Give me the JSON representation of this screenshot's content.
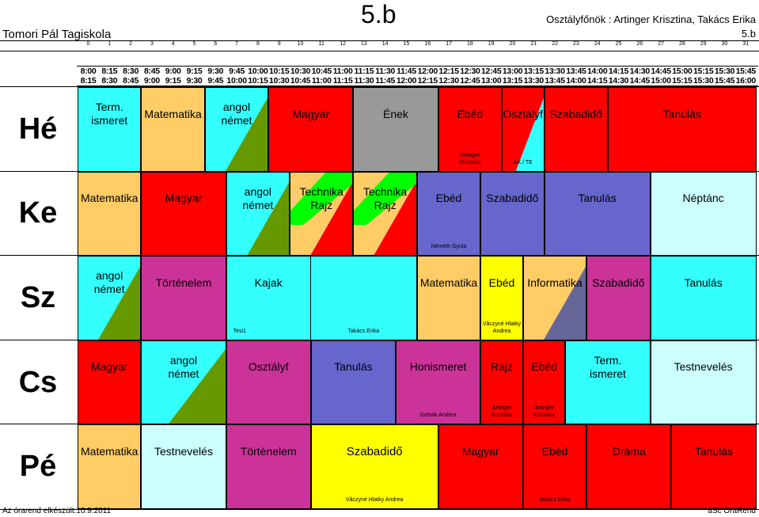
{
  "header": {
    "school": "Tomori Pál Tagiskola",
    "class_name": "5.b",
    "teachers": "Osztályfőnök : Artinger Krisztina, Takács Erika",
    "class_name_small": "5.b"
  },
  "periods": [
    "0",
    "1",
    "2",
    "3",
    "4",
    "5",
    "6",
    "7",
    "8",
    "9",
    "10",
    "11",
    "12",
    "13",
    "14",
    "15",
    "16",
    "17",
    "18",
    "19",
    "20",
    "21",
    "22",
    "23",
    "24",
    "25",
    "26",
    "27",
    "28",
    "29",
    "30",
    "31"
  ],
  "start_times": [
    "8:00",
    "8:15",
    "8:30",
    "8:45",
    "9:00",
    "9:15",
    "9:30",
    "9:45",
    "10:00",
    "10:15",
    "10:30",
    "10:45",
    "11:00",
    "11:15",
    "11:30",
    "11:45",
    "12:00",
    "12:15",
    "12:30",
    "12:45",
    "13:00",
    "13:15",
    "13:30",
    "13:45",
    "14:00",
    "14:15",
    "14:30",
    "14:45",
    "15:00",
    "15:15",
    "15:30",
    "15:45"
  ],
  "end_times": [
    "8:15",
    "8:30",
    "8:45",
    "9:00",
    "9:15",
    "9:30",
    "9:45",
    "10:00",
    "10:15",
    "10:30",
    "10:45",
    "11:00",
    "11:15",
    "11:30",
    "11:45",
    "12:00",
    "12:15",
    "12:30",
    "12:45",
    "13:00",
    "13:15",
    "13:30",
    "13:45",
    "14:00",
    "14:15",
    "14:30",
    "14:45",
    "15:00",
    "15:15",
    "15:30",
    "15:45",
    "16:00"
  ],
  "colors": {
    "red": "#ff0000",
    "cyan": "#33ffff",
    "peach": "#ffcc66",
    "olive": "#669900",
    "gray": "#999999",
    "purple": "#6666cc",
    "lightcyan": "#ccffff",
    "magenta": "#cc3399",
    "green": "#00ff00",
    "yellow": "#ffff00",
    "slate": "#666699"
  },
  "days": [
    {
      "label": "Hé",
      "lessons": [
        {
          "start": 0,
          "span": 3,
          "subjects": [
            "Term.\nismeret"
          ],
          "teacher": "",
          "bg": "cyan"
        },
        {
          "start": 3,
          "span": 3,
          "subjects": [
            "Matematika"
          ],
          "teacher": "",
          "bg": "peach"
        },
        {
          "start": 6,
          "span": 3,
          "subjects": [
            "angol",
            "német"
          ],
          "teacher": "",
          "bg": "cyan",
          "split": "olive"
        },
        {
          "start": 9,
          "span": 4,
          "subjects": [
            "Magyar"
          ],
          "teacher": "",
          "bg": "red"
        },
        {
          "start": 13,
          "span": 4,
          "subjects": [
            "Ének"
          ],
          "teacher": "",
          "bg": "gray"
        },
        {
          "start": 17,
          "span": 3,
          "subjects": [
            "Ebéd"
          ],
          "teacher": "Artinger\nKrisztina",
          "bg": "red"
        },
        {
          "start": 20,
          "span": 2,
          "subjects": [
            "Osztályf"
          ],
          "teacher": "AK / TE",
          "bg": "red",
          "split": "cyan"
        },
        {
          "start": 22,
          "span": 3,
          "subjects": [
            "Szabadidő"
          ],
          "teacher": "",
          "bg": "red"
        },
        {
          "start": 25,
          "span": 7,
          "subjects": [
            "Tanulás"
          ],
          "teacher": "",
          "bg": "red"
        }
      ]
    },
    {
      "label": "Ke",
      "lessons": [
        {
          "start": 0,
          "span": 3,
          "subjects": [
            "Matematika"
          ],
          "teacher": "",
          "bg": "peach"
        },
        {
          "start": 3,
          "span": 4,
          "subjects": [
            "Magyar"
          ],
          "teacher": "",
          "bg": "red"
        },
        {
          "start": 7,
          "span": 3,
          "subjects": [
            "angol",
            "német"
          ],
          "teacher": "",
          "bg": "cyan",
          "split": "olive"
        },
        {
          "start": 10,
          "span": 3,
          "subjects": [
            "Technika",
            "Rajz"
          ],
          "teacher": "",
          "bg": "peach",
          "stripe": "green",
          "split": "red"
        },
        {
          "start": 13,
          "span": 3,
          "subjects": [
            "Technika",
            "Rajz"
          ],
          "teacher": "",
          "bg": "peach",
          "stripe": "green",
          "split": "red"
        },
        {
          "start": 16,
          "span": 3,
          "subjects": [
            "Ebéd"
          ],
          "teacher": "Németh Gyula",
          "bg": "purple"
        },
        {
          "start": 19,
          "span": 3,
          "subjects": [
            "Szabadidő"
          ],
          "teacher": "",
          "bg": "purple"
        },
        {
          "start": 22,
          "span": 5,
          "subjects": [
            "Tanulás"
          ],
          "teacher": "",
          "bg": "purple"
        },
        {
          "start": 27,
          "span": 5,
          "subjects": [
            "Néptánc"
          ],
          "teacher": "",
          "bg": "lightcyan"
        }
      ]
    },
    {
      "label": "Sz",
      "lessons": [
        {
          "start": 0,
          "span": 3,
          "subjects": [
            "angol",
            "német"
          ],
          "teacher": "",
          "bg": "cyan",
          "split": "olive"
        },
        {
          "start": 3,
          "span": 4,
          "subjects": [
            "Történelem"
          ],
          "teacher": "",
          "bg": "magenta"
        },
        {
          "start": 7,
          "span": 4,
          "subjects": [
            "Kajak"
          ],
          "teacher": "Tesi1",
          "bg": "cyan",
          "tpos": "left"
        },
        {
          "start": 11,
          "span": 5,
          "subjects": [
            "Kajak_"
          ],
          "teacher": "Takács Erika",
          "bg": "cyan",
          "hide": true
        },
        {
          "start": 16,
          "span": 3,
          "subjects": [
            "Matematika"
          ],
          "teacher": "",
          "bg": "peach"
        },
        {
          "start": 19,
          "span": 2,
          "subjects": [
            "Ebéd"
          ],
          "teacher": "Vâczyné Hlatky\nAndrea",
          "bg": "yellow"
        },
        {
          "start": 21,
          "span": 3,
          "subjects": [
            "Informatika"
          ],
          "teacher": "",
          "bg": "peach",
          "split": "slate"
        },
        {
          "start": 24,
          "span": 3,
          "subjects": [
            "Szabadidő"
          ],
          "teacher": "",
          "bg": "magenta"
        },
        {
          "start": 27,
          "span": 5,
          "subjects": [
            "Tanulás"
          ],
          "teacher": "",
          "bg": "cyan"
        }
      ]
    },
    {
      "label": "Cs",
      "lessons": [
        {
          "start": 0,
          "span": 3,
          "subjects": [
            "Magyar"
          ],
          "teacher": "",
          "bg": "red"
        },
        {
          "start": 3,
          "span": 4,
          "subjects": [
            "angol",
            "német"
          ],
          "teacher": "",
          "bg": "cyan",
          "split": "olive"
        },
        {
          "start": 7,
          "span": 4,
          "subjects": [
            "Osztályf"
          ],
          "teacher": "",
          "bg": "magenta"
        },
        {
          "start": 11,
          "span": 4,
          "subjects": [
            "Tanulás"
          ],
          "teacher": "",
          "bg": "purple"
        },
        {
          "start": 15,
          "span": 4,
          "subjects": [
            "Honismeret"
          ],
          "teacher": "Gotsák Andrea",
          "bg": "magenta"
        },
        {
          "start": 19,
          "span": 2,
          "subjects": [
            "Rajz"
          ],
          "teacher": "Artinger\nKrisztina",
          "bg": "red"
        },
        {
          "start": 21,
          "span": 2,
          "subjects": [
            "Ebéd"
          ],
          "teacher": "Artinger\nKrisztina",
          "bg": "red"
        },
        {
          "start": 23,
          "span": 4,
          "subjects": [
            "Term.\nismeret"
          ],
          "teacher": "",
          "bg": "cyan"
        },
        {
          "start": 27,
          "span": 5,
          "subjects": [
            "Testnevelés"
          ],
          "teacher": "",
          "bg": "lightcyan"
        }
      ]
    },
    {
      "label": "Pé",
      "lessons": [
        {
          "start": 0,
          "span": 3,
          "subjects": [
            "Matematika"
          ],
          "teacher": "",
          "bg": "peach"
        },
        {
          "start": 3,
          "span": 4,
          "subjects": [
            "Testnevelés"
          ],
          "teacher": "",
          "bg": "lightcyan"
        },
        {
          "start": 7,
          "span": 4,
          "subjects": [
            "Történelem"
          ],
          "teacher": "",
          "bg": "magenta"
        },
        {
          "start": 11,
          "span": 6,
          "subjects": [
            "Szabadidő"
          ],
          "teacher": "Vâczyné Hlatky Andrea",
          "bg": "yellow",
          "nobold": true
        },
        {
          "start": 17,
          "span": 4,
          "subjects": [
            "Magyar"
          ],
          "teacher": "",
          "bg": "red"
        },
        {
          "start": 21,
          "span": 3,
          "subjects": [
            "Ebéd"
          ],
          "teacher": "Takács Erika",
          "bg": "red"
        },
        {
          "start": 24,
          "span": 4,
          "subjects": [
            "Dráma"
          ],
          "teacher": "",
          "bg": "red"
        },
        {
          "start": 28,
          "span": 4,
          "subjects": [
            "Tanulás"
          ],
          "teacher": "",
          "bg": "red"
        }
      ]
    }
  ],
  "footer": {
    "generated": "Az órarend elkészült:10.9.2011",
    "brand": "aSc OraRend"
  }
}
